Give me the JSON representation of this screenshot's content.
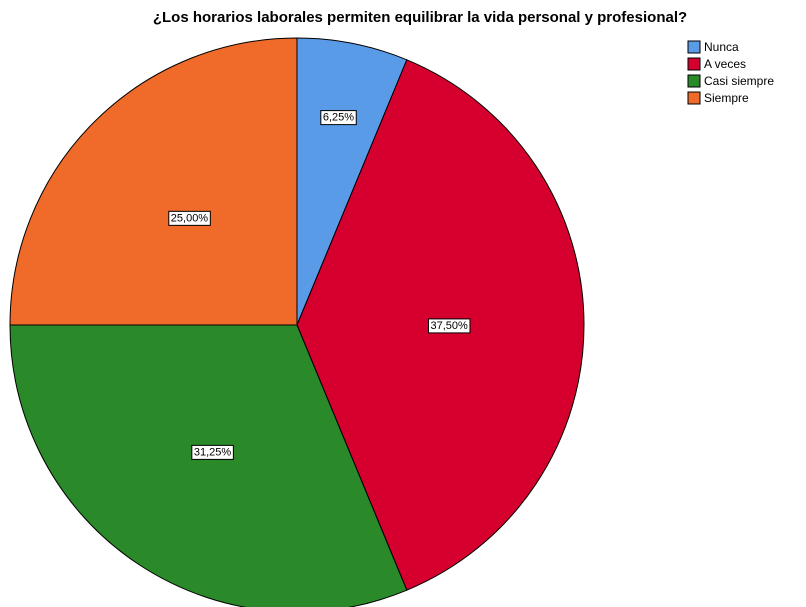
{
  "chart_data": {
    "type": "pie",
    "title": "¿Los horarios laborales permiten equilibrar la vida personal y profesional?",
    "categories": [
      "Nunca",
      "A veces",
      "Casi siempre",
      "Siempre"
    ],
    "values": [
      6.25,
      37.5,
      31.25,
      25
    ],
    "value_labels": [
      "6,25%",
      "37,50%",
      "31,25%",
      "25,00%"
    ],
    "colors": [
      "#5a9be8",
      "#d6002f",
      "#2a8a2a",
      "#f06a2a"
    ],
    "legend": "top-right"
  }
}
